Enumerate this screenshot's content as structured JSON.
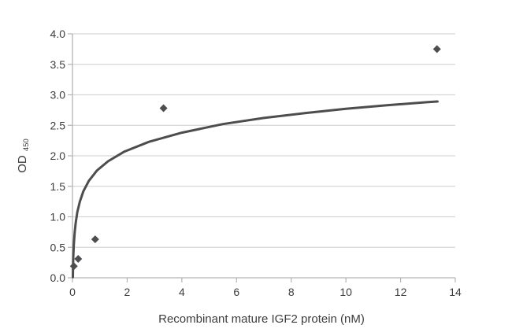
{
  "chart_data": {
    "type": "scatter",
    "title": "",
    "xlabel": "Recombinant mature IGF2 protein (nM)",
    "ylabel": "OD",
    "ylabel_subscript": "450",
    "xlim": [
      0,
      14
    ],
    "ylim": [
      0.0,
      4.0
    ],
    "x_tick_values": [
      0,
      2,
      4,
      6,
      8,
      10,
      12,
      14
    ],
    "x_tick_labels": [
      "0",
      "2",
      "4",
      "6",
      "8",
      "10",
      "12",
      "14"
    ],
    "y_tick_values": [
      0.0,
      0.5,
      1.0,
      1.5,
      2.0,
      2.5,
      3.0,
      3.5,
      4.0
    ],
    "y_tick_labels": [
      "0.0",
      "0.5",
      "1.0",
      "1.5",
      "2.0",
      "2.5",
      "3.0",
      "3.5",
      "4.0"
    ],
    "grid": "horizontal-gridlines-only",
    "legend_position": "none",
    "series": [
      {
        "name": "measured-points",
        "type": "scatter",
        "marker": "diamond",
        "points": [
          [
            0.05,
            0.19
          ],
          [
            0.21,
            0.31
          ],
          [
            0.83,
            0.63
          ],
          [
            3.33,
            2.78
          ],
          [
            13.33,
            3.75
          ]
        ]
      },
      {
        "name": "fit-curve",
        "type": "line",
        "points": [
          [
            0.014,
            0.01
          ],
          [
            0.02,
            0.16
          ],
          [
            0.03,
            0.33
          ],
          [
            0.05,
            0.54
          ],
          [
            0.08,
            0.74
          ],
          [
            0.12,
            0.91
          ],
          [
            0.18,
            1.08
          ],
          [
            0.27,
            1.25
          ],
          [
            0.4,
            1.42
          ],
          [
            0.6,
            1.59
          ],
          [
            0.9,
            1.76
          ],
          [
            1.3,
            1.91
          ],
          [
            1.9,
            2.07
          ],
          [
            2.8,
            2.23
          ],
          [
            4.0,
            2.38
          ],
          [
            5.5,
            2.52
          ],
          [
            7.0,
            2.62
          ],
          [
            8.5,
            2.7
          ],
          [
            10.0,
            2.77
          ],
          [
            11.5,
            2.83
          ],
          [
            13.0,
            2.88
          ],
          [
            13.35,
            2.89
          ]
        ]
      }
    ]
  },
  "colors": {
    "background": "#ffffff",
    "text": "#3d3d3d",
    "gridline": "#d6d6d6",
    "axis": "#b3b3b3",
    "curve": "#4d4d4d",
    "marker": "#4c4e52"
  }
}
